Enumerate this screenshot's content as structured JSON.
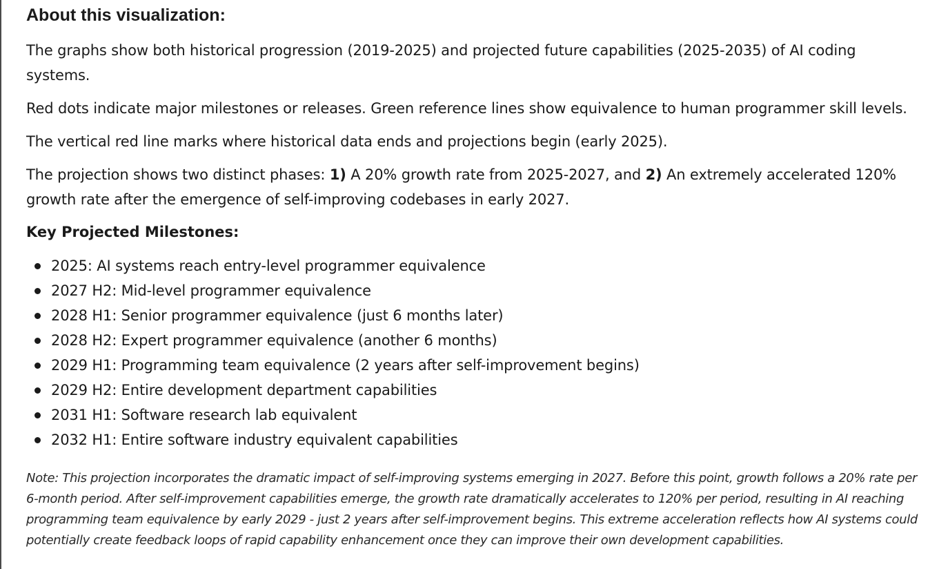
{
  "about": {
    "heading": "About this visualization:",
    "para1": "The graphs show both historical progression (2019-2025) and projected future capabilities (2025-2035) of AI coding systems.",
    "para2": "Red dots indicate major milestones or releases. Green reference lines show equivalence to human programmer skill levels.",
    "para3": "The vertical red line marks where historical data ends and projections begin (early 2025).",
    "para4": {
      "intro": "The projection shows two distinct phases: ",
      "phase1_num": "1)",
      "phase1_text": " A 20% growth rate from 2025-2027, and ",
      "phase2_num": "2)",
      "phase2_text": " An extremely accelerated 120% growth rate after the emergence of self-improving codebases in early 2027."
    }
  },
  "milestones": {
    "heading": "Key Projected Milestones:",
    "items": [
      "2025: AI systems reach entry-level programmer equivalence",
      "2027 H2: Mid-level programmer equivalence",
      "2028 H1: Senior programmer equivalence (just 6 months later)",
      "2028 H2: Expert programmer equivalence (another 6 months)",
      "2029 H1: Programming team equivalence (2 years after self-improvement begins)",
      "2029 H2: Entire development department capabilities",
      "2031 H1: Software research lab equivalent",
      "2032 H1: Entire software industry equivalent capabilities"
    ]
  },
  "note": "Note: This projection incorporates the dramatic impact of self-improving systems emerging in 2027. Before this point, growth follows a 20% rate per 6-month period. After self-improvement capabilities emerge, the growth rate dramatically accelerates to 120% per period, resulting in AI reaching programming team equivalence by early 2029 - just 2 years after self-improvement begins. This extreme acceleration reflects how AI systems could potentially create feedback loops of rapid capability enhancement once they can improve their own development capabilities."
}
